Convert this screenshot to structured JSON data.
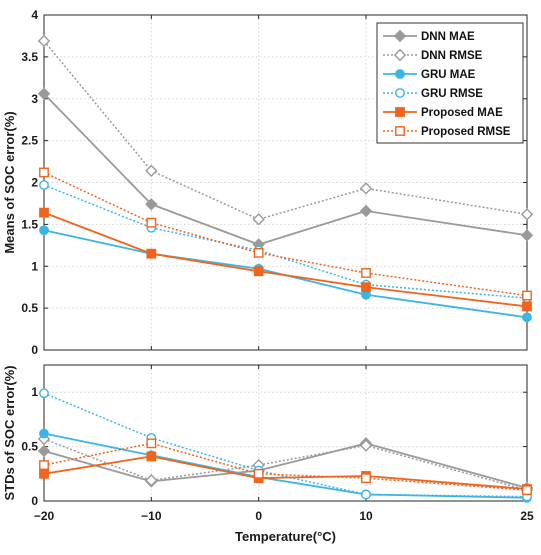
{
  "colors": {
    "dnn": "#9a9a9a",
    "gru": "#3ab6e6",
    "proposed": "#f0641e",
    "grid": "#d4d4d4",
    "axis": "#262626"
  },
  "chart_data": [
    {
      "type": "line",
      "x": [
        -20,
        -10,
        0,
        10,
        25
      ],
      "ylabel": "Means of SOC error(%)",
      "xlabel": "",
      "ylim": [
        0,
        4
      ],
      "yticks": [
        "0",
        "0.5",
        "1",
        "1.5",
        "2",
        "2.5",
        "3",
        "3.5",
        "4"
      ],
      "yticks_values": [
        0,
        0.5,
        1,
        1.5,
        2,
        2.5,
        3,
        3.5,
        4
      ],
      "grid": true,
      "legend_position": "top-right",
      "series": [
        {
          "name": "DNN MAE",
          "color_key": "dnn",
          "style": "solid",
          "marker": "diamond-filled",
          "values": [
            3.06,
            1.74,
            1.26,
            1.66,
            1.37
          ]
        },
        {
          "name": "DNN RMSE",
          "color_key": "dnn",
          "style": "dotted",
          "marker": "diamond-open",
          "values": [
            3.69,
            2.14,
            1.56,
            1.93,
            1.62
          ]
        },
        {
          "name": "GRU MAE",
          "color_key": "gru",
          "style": "solid",
          "marker": "circle-filled",
          "values": [
            1.43,
            1.15,
            0.97,
            0.66,
            0.39
          ]
        },
        {
          "name": "GRU RMSE",
          "color_key": "gru",
          "style": "dotted",
          "marker": "circle-open",
          "values": [
            1.97,
            1.46,
            1.19,
            0.78,
            0.62
          ]
        },
        {
          "name": "Proposed MAE",
          "color_key": "proposed",
          "style": "solid",
          "marker": "square-filled",
          "values": [
            1.64,
            1.15,
            0.94,
            0.75,
            0.52
          ]
        },
        {
          "name": "Proposed RMSE",
          "color_key": "proposed",
          "style": "dotted",
          "marker": "square-open",
          "values": [
            2.12,
            1.52,
            1.16,
            0.92,
            0.65
          ]
        }
      ]
    },
    {
      "type": "line",
      "x": [
        -20,
        -10,
        0,
        10,
        25
      ],
      "xlabel": "Temperature(°C)",
      "ylabel": "STDs of SOC error(%)",
      "xticks": [
        "−20",
        "−10",
        "0",
        "10",
        "25"
      ],
      "xticks_values": [
        -20,
        -10,
        0,
        10,
        25
      ],
      "xlim": [
        -20,
        25
      ],
      "ylim": [
        0,
        1.25
      ],
      "yticks": [
        "0",
        "0.5",
        "1"
      ],
      "yticks_values": [
        0,
        0.5,
        1
      ],
      "grid": true,
      "series": [
        {
          "name": "DNN MAE",
          "color_key": "dnn",
          "style": "solid",
          "marker": "diamond-filled",
          "values": [
            0.46,
            0.18,
            0.28,
            0.53,
            0.12
          ]
        },
        {
          "name": "DNN RMSE",
          "color_key": "dnn",
          "style": "dotted",
          "marker": "diamond-open",
          "values": [
            0.57,
            0.19,
            0.33,
            0.51,
            0.1
          ]
        },
        {
          "name": "GRU MAE",
          "color_key": "gru",
          "style": "solid",
          "marker": "circle-filled",
          "values": [
            0.62,
            0.42,
            0.22,
            0.06,
            0.03
          ]
        },
        {
          "name": "GRU RMSE",
          "color_key": "gru",
          "style": "dotted",
          "marker": "circle-open",
          "values": [
            0.99,
            0.58,
            0.28,
            0.06,
            0.04
          ]
        },
        {
          "name": "Proposed MAE",
          "color_key": "proposed",
          "style": "solid",
          "marker": "square-filled",
          "values": [
            0.25,
            0.41,
            0.21,
            0.23,
            0.11
          ]
        },
        {
          "name": "Proposed RMSE",
          "color_key": "proposed",
          "style": "dotted",
          "marker": "square-open",
          "values": [
            0.33,
            0.53,
            0.25,
            0.21,
            0.1
          ]
        }
      ]
    }
  ]
}
